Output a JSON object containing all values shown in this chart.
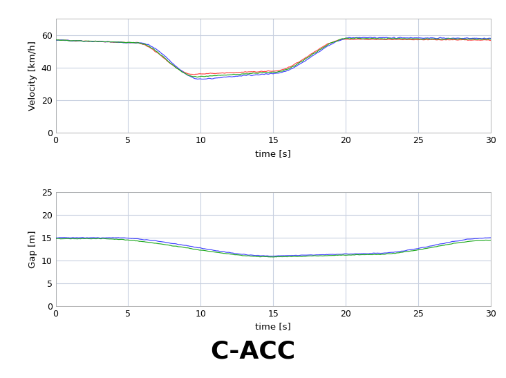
{
  "title": "C-ACC",
  "title_fontsize": 26,
  "title_fontweight": "bold",
  "subplot1": {
    "ylabel": "Velocity [km/h]",
    "xlabel": "time [s]",
    "xlim": [
      0,
      30
    ],
    "ylim": [
      0,
      70
    ],
    "yticks": [
      0,
      20,
      40,
      60
    ],
    "xticks": [
      0,
      5,
      10,
      15,
      20,
      25,
      30
    ]
  },
  "subplot2": {
    "ylabel": "Gap [m]",
    "xlabel": "time [s]",
    "xlim": [
      0,
      30
    ],
    "ylim": [
      0,
      25
    ],
    "yticks": [
      0,
      5,
      10,
      15,
      20,
      25
    ],
    "xticks": [
      0,
      5,
      10,
      15,
      20,
      25,
      30
    ]
  },
  "colors": {
    "lead": "#ff4444",
    "follower1": "#4444ff",
    "follower2": "#22aa22",
    "follower3": "#ff8800"
  },
  "background_color": "#ffffff",
  "grid_color": "#c8d0e0",
  "line_width": 0.85
}
